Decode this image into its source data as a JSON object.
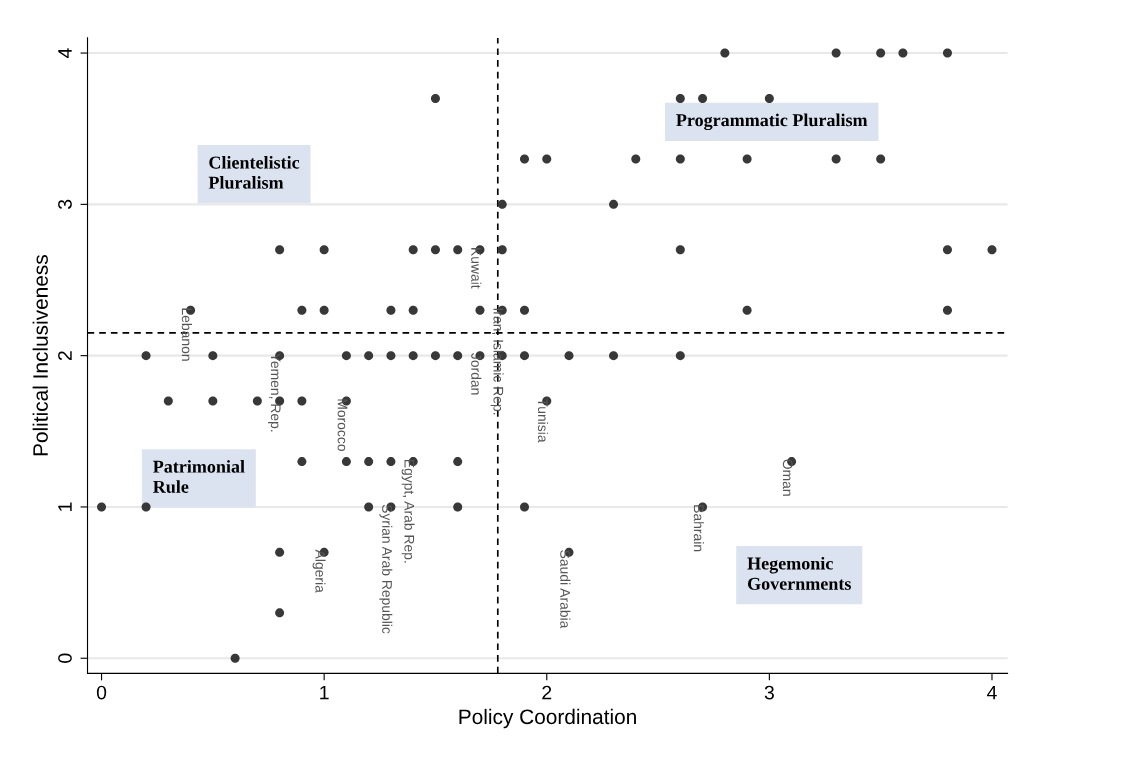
{
  "chart_data": {
    "type": "scatter",
    "xlabel": "Policy Coordination",
    "ylabel": "Political Inclusiveness",
    "x": [
      2.8,
      3.3,
      3.5,
      3.6,
      3.8,
      1.5,
      2.6,
      2.7,
      3.0,
      1.9,
      2.0,
      2.4,
      2.6,
      2.9,
      3.3,
      3.5,
      1.8,
      2.3,
      0.8,
      1.0,
      1.4,
      1.5,
      1.6,
      1.7,
      1.8,
      2.6,
      3.8,
      4.0,
      0.4,
      0.9,
      1.0,
      1.3,
      1.4,
      1.7,
      1.8,
      1.9,
      2.9,
      3.8,
      0.2,
      0.5,
      0.8,
      1.1,
      1.2,
      1.3,
      1.4,
      1.5,
      1.6,
      1.7,
      1.8,
      1.9,
      2.1,
      2.3,
      2.6,
      0.3,
      0.5,
      0.7,
      0.8,
      0.9,
      1.1,
      2.0,
      0.9,
      1.1,
      1.2,
      1.3,
      1.4,
      1.6,
      3.1,
      0.0,
      0.2,
      1.2,
      1.3,
      1.6,
      1.9,
      2.7,
      0.8,
      1.0,
      2.1,
      0.8,
      0.6
    ],
    "series": [
      {
        "color": "#383838",
        "values": [
          4,
          4,
          4,
          4,
          4,
          3.7,
          3.7,
          3.7,
          3.7,
          3.3,
          3.3,
          3.3,
          3.3,
          3.3,
          3.3,
          3.3,
          3,
          3,
          2.7,
          2.7,
          2.7,
          2.7,
          2.7,
          2.7,
          2.7,
          2.7,
          2.7,
          2.7,
          2.3,
          2.3,
          2.3,
          2.3,
          2.3,
          2.3,
          2.3,
          2.3,
          2.3,
          2.3,
          2,
          2,
          2,
          2,
          2,
          2,
          2,
          2,
          2,
          2,
          2,
          2,
          2,
          2,
          2,
          1.7,
          1.7,
          1.7,
          1.7,
          1.7,
          1.7,
          1.7,
          1.3,
          1.3,
          1.3,
          1.3,
          1.3,
          1.3,
          1.3,
          1,
          1,
          1,
          1,
          1,
          1,
          1,
          0.7,
          0.7,
          0.7,
          0.3,
          0
        ]
      }
    ],
    "marker": "circle",
    "grid": "y",
    "xlim": [
      -0.063,
      4.07
    ],
    "ylim": [
      -0.1,
      4.1
    ],
    "xticks": [
      0,
      1,
      2,
      3,
      4
    ],
    "yticks": [
      0,
      1,
      2,
      3,
      4
    ],
    "ref_lines": [
      {
        "axis": "x",
        "value": 1.78,
        "color": "#000000",
        "line_style": "dashed"
      },
      {
        "axis": "y",
        "value": 2.15,
        "color": "#000000",
        "line_style": "dashed"
      }
    ],
    "annotations": [
      "Clientelistic\nPluralism",
      "Programmatic Pluralism",
      "Patrimonial\nRule",
      "Hegemonic\nGovernments",
      {
        "text": "Lebanon",
        "x": 0.4,
        "y": 2.3
      },
      {
        "text": "Yemen, Rep.",
        "x": 0.8,
        "y": 2.0
      },
      {
        "text": "Morocco",
        "x": 1.1,
        "y": 1.7
      },
      {
        "text": "Egypt, Arab Rep.",
        "x": 1.4,
        "y": 1.3
      },
      {
        "text": "Syrian Arab Republic",
        "x": 1.3,
        "y": 1.0
      },
      {
        "text": "Algeria",
        "x": 1.0,
        "y": 0.7
      },
      {
        "text": "Kuwait",
        "x": 1.7,
        "y": 2.7
      },
      {
        "text": "Jordan",
        "x": 1.7,
        "y": 2.0
      },
      {
        "text": "Iran, Islamic Rep.",
        "x": 1.8,
        "y": 2.3
      },
      {
        "text": "Tunisia",
        "x": 2.0,
        "y": 1.7
      },
      {
        "text": "Saudi Arabia",
        "x": 2.1,
        "y": 0.7
      },
      {
        "text": "Bahrain",
        "x": 2.7,
        "y": 1.0
      },
      {
        "text": "Oman",
        "x": 3.1,
        "y": 1.3
      }
    ]
  }
}
